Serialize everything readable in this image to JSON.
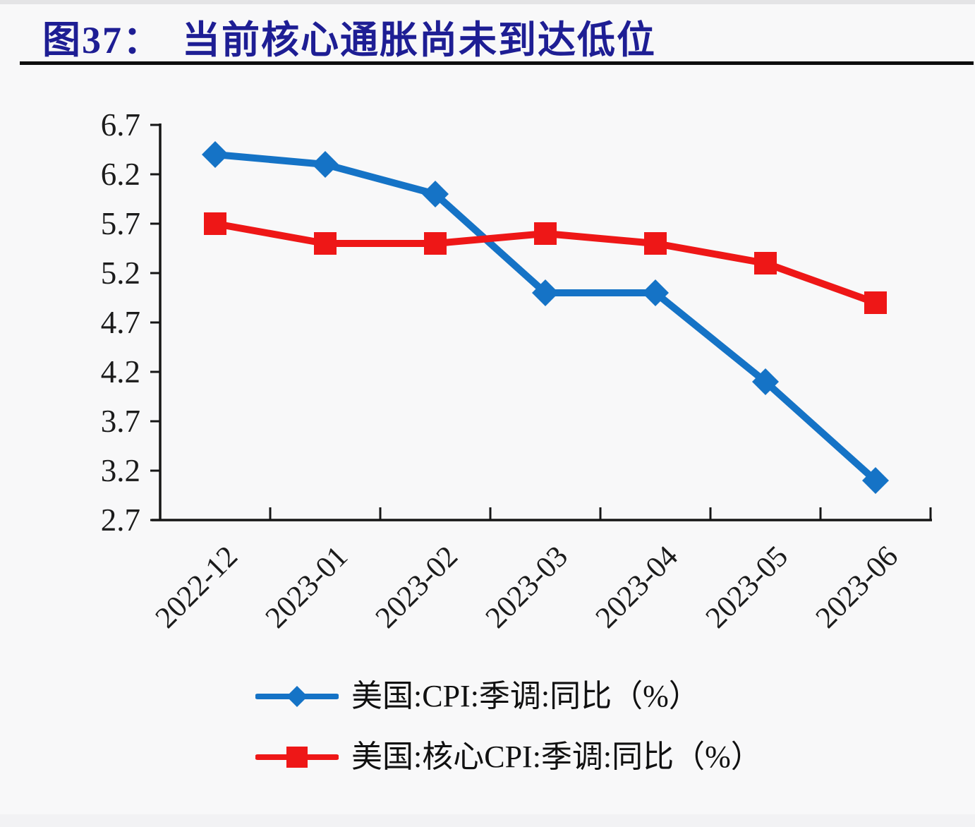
{
  "header": {
    "figure_label": "图37：",
    "title": "当前核心通胀尚未到达低位",
    "title_color": "#1E1E94"
  },
  "chart_data": {
    "type": "line",
    "title": "图37：当前核心通胀尚未到达低位",
    "categories": [
      "2022-12",
      "2023-01",
      "2023-02",
      "2023-03",
      "2023-04",
      "2023-05",
      "2023-06"
    ],
    "series": [
      {
        "id": "cpi",
        "name": "美国:CPI:季调:同比（%）",
        "values": [
          6.4,
          6.3,
          6.0,
          5.0,
          5.0,
          4.1,
          3.1
        ],
        "color": "#1573C6",
        "marker": "diamond"
      },
      {
        "id": "core-cpi",
        "name": "美国:核心CPI:季调:同比（%）",
        "values": [
          5.7,
          5.5,
          5.5,
          5.6,
          5.5,
          5.3,
          4.9
        ],
        "color": "#EE1717",
        "marker": "square"
      }
    ],
    "xlabel": "",
    "ylabel": "",
    "ylim": [
      2.7,
      6.7
    ],
    "y_ticks": [
      6.7,
      6.2,
      5.7,
      5.2,
      4.7,
      4.2,
      3.7,
      3.2,
      2.7
    ],
    "x_label_rotation": -45,
    "grid": false,
    "legend_position": "bottom",
    "axis_color": "#161616",
    "label_color": "#1B1B1B"
  }
}
